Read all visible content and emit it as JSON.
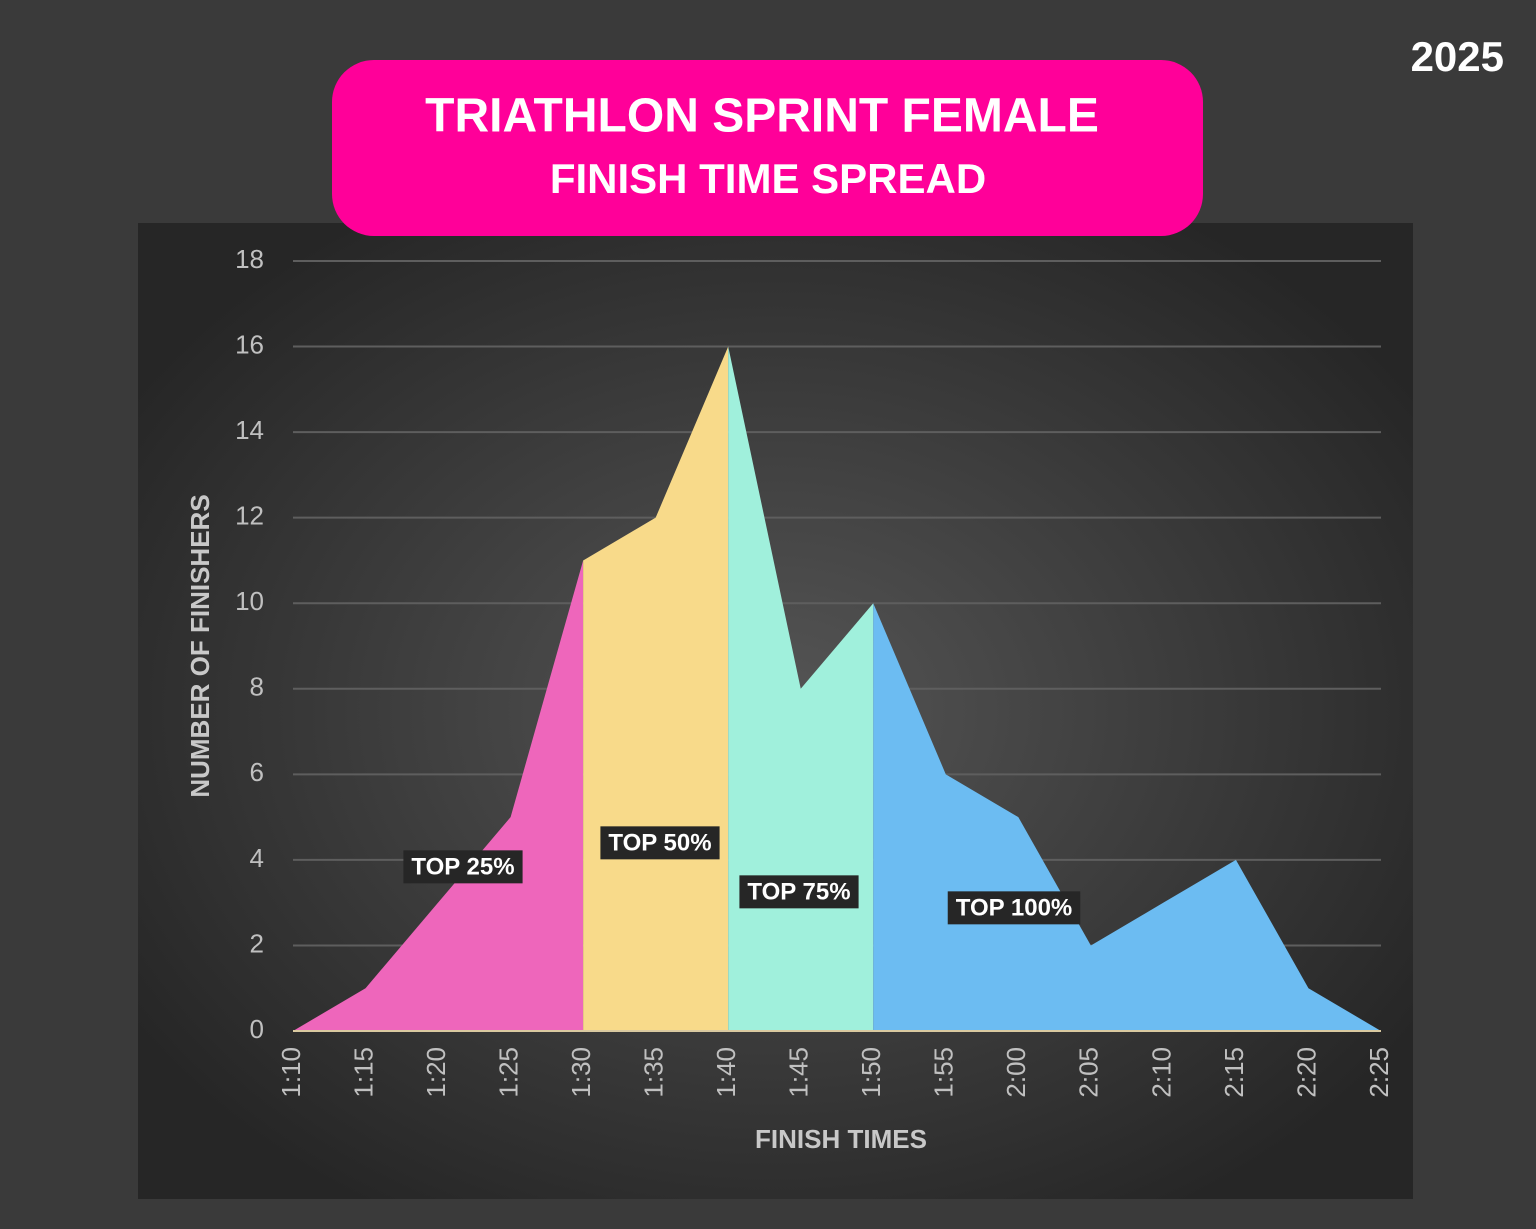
{
  "chart_data": {
    "type": "area",
    "title": "TRIATHLON SPRINT FEMALE",
    "subtitle": "FINISH TIME SPREAD",
    "year": "2025",
    "x_label": "FINISH TIMES",
    "y_label": "NUMBER OF FINISHERS",
    "categories": [
      "1:10",
      "1:15",
      "1:20",
      "1:25",
      "1:30",
      "1:35",
      "1:40",
      "1:45",
      "1:50",
      "1:55",
      "2:00",
      "2:05",
      "2:10",
      "2:15",
      "2:20",
      "2:25"
    ],
    "series": [
      {
        "name": "TOP 25%",
        "color": "#ee66bb",
        "values": [
          0,
          1,
          3,
          5,
          11,
          null,
          null,
          null,
          null,
          null,
          null,
          null,
          null,
          null,
          null,
          null
        ]
      },
      {
        "name": "TOP 50%",
        "color": "#f8da8a",
        "values": [
          null,
          null,
          null,
          null,
          11,
          12,
          16,
          null,
          null,
          null,
          null,
          null,
          null,
          null,
          null,
          null
        ]
      },
      {
        "name": "TOP 75%",
        "color": "#a0f0dc",
        "values": [
          null,
          null,
          null,
          null,
          null,
          null,
          16,
          8,
          10,
          null,
          null,
          null,
          null,
          null,
          null,
          null
        ]
      },
      {
        "name": "TOP 100%",
        "color": "#6cbcf2",
        "values": [
          null,
          null,
          null,
          null,
          null,
          null,
          null,
          null,
          10,
          6,
          5,
          2,
          3,
          4,
          1,
          0
        ]
      }
    ],
    "ylim": [
      0,
      18
    ],
    "yticks": [
      0,
      2,
      4,
      6,
      8,
      10,
      12,
      14,
      16,
      18
    ],
    "grid": true
  }
}
